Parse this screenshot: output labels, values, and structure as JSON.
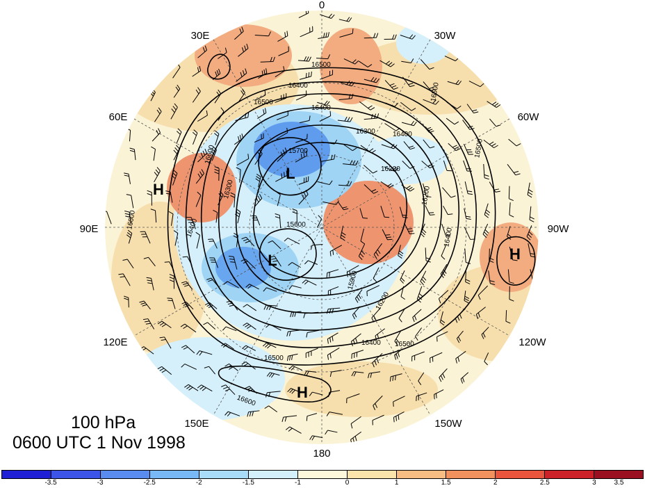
{
  "map": {
    "longitude_labels": [
      "0",
      "30W",
      "60W",
      "90W",
      "120W",
      "150W",
      "180",
      "150E",
      "120E",
      "90E",
      "60E",
      "30E"
    ],
    "contour_labels": [
      "16500",
      "16400",
      "16400",
      "16300",
      "16400",
      "16200",
      "16500",
      "16500",
      "15900",
      "15700",
      "15600",
      "16600",
      "16300",
      "16400",
      "16600",
      "16400",
      "16500",
      "16200",
      "16400",
      "16500",
      "16500",
      "16600",
      "16200"
    ],
    "pressure_centers": [
      "L",
      "L",
      "H",
      "H",
      "H"
    ]
  },
  "title": {
    "level": "100 hPa",
    "time": "0600 UTC 1 Nov 1998"
  },
  "colorbar": {
    "colors": [
      "#1f1fd6",
      "#3c55e8",
      "#5a8cf0",
      "#78b8f5",
      "#a8dcf8",
      "#d4f0fa",
      "#fdf8dc",
      "#fbe3ac",
      "#f8bd82",
      "#f1915e",
      "#e8543c",
      "#cc2128",
      "#9a1020"
    ],
    "tick_labels": [
      "-3.5",
      "-3",
      "-2.5",
      "-2",
      "-1.5",
      "-1",
      "0",
      "1",
      "1.5",
      "2",
      "2.5",
      "3",
      "3.5"
    ]
  }
}
